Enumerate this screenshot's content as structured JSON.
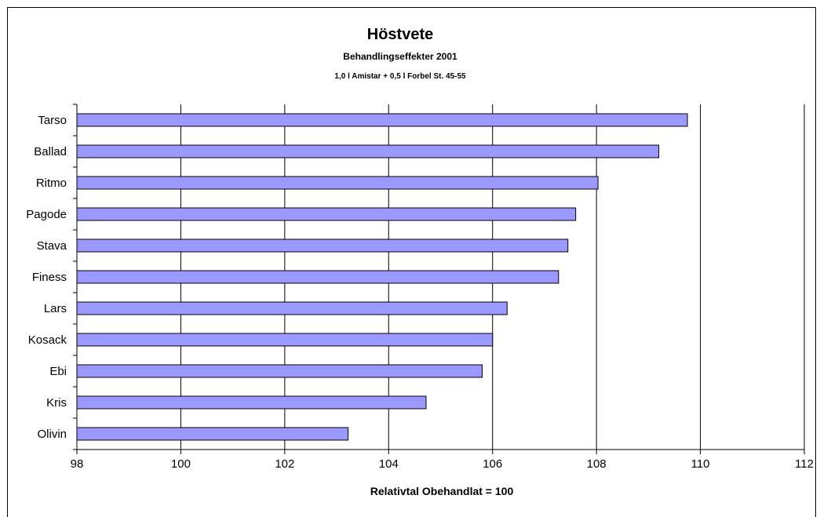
{
  "chart_data": {
    "type": "bar",
    "orientation": "horizontal",
    "title": "Höstvete",
    "subtitle": "Behandlingseffekter 2001",
    "subtitle2": "1,0 l Amistar + 0,5 l Forbel St. 45-55",
    "xlabel": "Relativtal  Obehandlat = 100",
    "categories": [
      "Tarso",
      "Ballad",
      "Ritmo",
      "Pagode",
      "Stava",
      "Finess",
      "Lars",
      "Kosack",
      "Ebi",
      "Kris",
      "Olivin"
    ],
    "values": [
      109.75,
      109.2,
      108.03,
      107.6,
      107.45,
      107.27,
      106.28,
      106.0,
      105.8,
      104.72,
      103.22
    ],
    "xlim": [
      98,
      112
    ],
    "xticks": [
      98,
      100,
      102,
      104,
      106,
      108,
      110,
      112
    ],
    "grid": true,
    "colors": {
      "bar_fill": "#9999ff",
      "bar_stroke": "#000000",
      "grid": "#000000"
    }
  }
}
